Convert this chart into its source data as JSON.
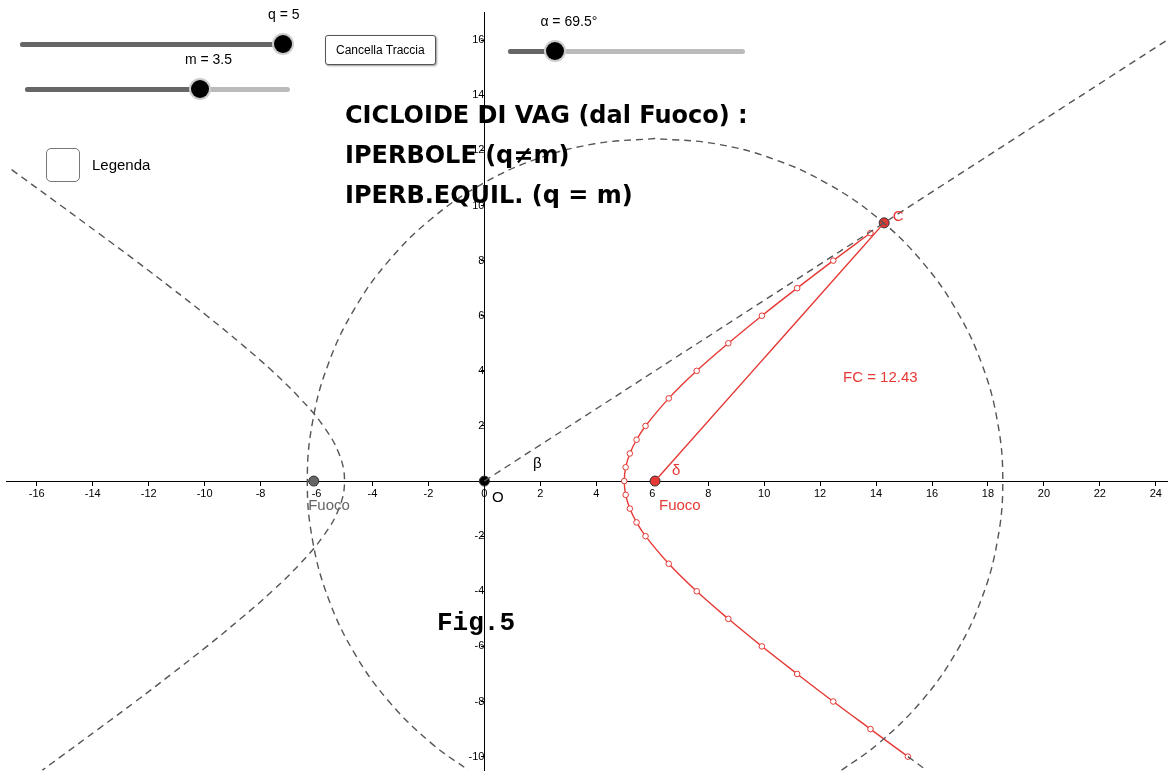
{
  "chart_data": {
    "type": "line",
    "title": "CICLOIDE DI VAG (dal Fuoco) :",
    "subtitle": "IPERBOLE  (q≠m)\nIPERB.EQUIL. (q = m)",
    "xlim": [
      -17.1,
      24.4
    ],
    "ylim": [
      -10.5,
      17
    ],
    "xticks": [
      -16,
      -14,
      -12,
      -10,
      -8,
      -6,
      -4,
      -2,
      0,
      2,
      4,
      6,
      8,
      10,
      12,
      14,
      16,
      18,
      20,
      22,
      24
    ],
    "yticks": [
      -10,
      -8,
      -6,
      -4,
      -2,
      2,
      4,
      6,
      8,
      10,
      12,
      14,
      16
    ],
    "grid": false,
    "legend": false,
    "series": [
      {
        "type": "line",
        "color": "#555555",
        "line_style": "dashed",
        "marker": "none",
        "x": [
          6.1,
          3.94,
          1.85,
          -0.12,
          -1.89,
          -3.42,
          -4.66,
          -5.58,
          -6.14,
          -6.33,
          -6.14,
          -5.58,
          -4.66,
          -3.42,
          -1.89,
          -0.56
        ],
        "values": [
          12.43,
          12.24,
          11.68,
          10.76,
          9.52,
          7.99,
          6.22,
          4.25,
          2.16,
          0,
          -2.16,
          -4.25,
          -6.22,
          -7.99,
          -9.52,
          -10.5
        ]
      },
      {
        "type": "line",
        "color": "#555555",
        "line_style": "dashed",
        "marker": "none",
        "x": [
          12.76,
          14.09,
          15.62,
          16.86,
          17.78,
          18.34,
          18.53,
          18.34,
          17.78,
          16.86,
          15.62,
          14.09,
          12.32,
          10.35,
          8.26,
          6.1
        ],
        "values": [
          -10.5,
          -9.52,
          -7.99,
          -6.22,
          -4.25,
          -2.16,
          0,
          2.16,
          4.25,
          6.22,
          7.99,
          9.52,
          10.76,
          11.68,
          12.24,
          12.43
        ]
      },
      {
        "type": "line",
        "color": "#555555",
        "line_style": "dashed",
        "marker": "none",
        "x": [
          -16.9,
          -15.14,
          -13.8,
          -12.47,
          -11.18,
          -9.92,
          -8.72,
          -7.59,
          -6.59,
          -5.76,
          -5.2,
          -5,
          -5.2,
          -5.76,
          -6.59,
          -7.59,
          -8.72,
          -9.92,
          -11.18,
          -12.47,
          -13.8,
          -15.14,
          -15.81
        ],
        "values": [
          11.3,
          10,
          9,
          8,
          7,
          6,
          5,
          4,
          3,
          2,
          1,
          0,
          -1,
          -2,
          -3,
          -4,
          -5,
          -6,
          -7,
          -8,
          -9,
          -10,
          -10.5
        ]
      },
      {
        "type": "line",
        "color": "#555555",
        "line_style": "dashed",
        "marker": "none",
        "x": [
          15.14,
          15.81
        ],
        "values": [
          -10,
          -10.5
        ]
      },
      {
        "type": "line",
        "color": "#555555",
        "line_style": "dashed",
        "marker": "none",
        "x": [
          0,
          24.4
        ],
        "values": [
          0,
          16.0
        ]
      },
      {
        "type": "line",
        "color": "#e53935",
        "line_style": "solid",
        "marker": "circle",
        "x": [
          13.8,
          12.47,
          11.18,
          9.92,
          8.72,
          7.59,
          6.59,
          5.76,
          5.44,
          5.2,
          5.05,
          5,
          5.05,
          5.2,
          5.44,
          5.76,
          6.59,
          7.59,
          8.72,
          9.92,
          11.18,
          12.47,
          13.8,
          15.14
        ],
        "values": [
          9,
          8,
          7,
          6,
          5,
          4,
          3,
          2,
          1.5,
          1,
          0.5,
          0,
          -0.5,
          -1,
          -1.5,
          -2,
          -3,
          -4,
          -5,
          -6,
          -7,
          -8,
          -9,
          -10
        ]
      },
      {
        "type": "line",
        "color": "#e53935",
        "line_style": "solid",
        "marker": "none",
        "x": [
          6.1,
          14.29
        ],
        "values": [
          0,
          9.37
        ]
      },
      {
        "type": "scatter",
        "color": "#000000",
        "marker": "circle",
        "x": [
          0
        ],
        "values": [
          0
        ]
      },
      {
        "type": "scatter",
        "color": "#e53935",
        "marker": "circle",
        "x": [
          6.1,
          14.29
        ],
        "values": [
          0,
          9.37
        ]
      },
      {
        "type": "scatter",
        "color": "#666666",
        "marker": "circle",
        "x": [
          -6.1
        ],
        "values": [
          0
        ]
      }
    ],
    "annotations": [
      "q = 5",
      "m = 3.5",
      "Cancella Traccia",
      "α = 69.5°",
      "Legenda",
      "Fig.5",
      "FC = 12.43",
      "Fuoco",
      "O",
      "β",
      "δ",
      {
        "text": "C",
        "x": 14.6,
        "y": 9.6
      },
      {
        "text": "Fuoco",
        "x": -6.3,
        "y": -0.9
      }
    ]
  }
}
